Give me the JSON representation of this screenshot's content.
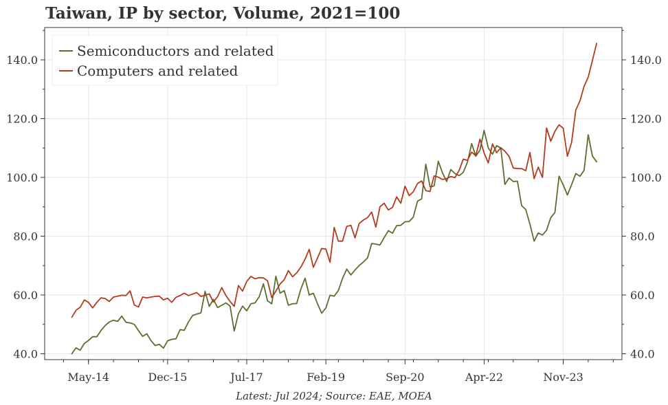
{
  "chart_data": {
    "type": "line",
    "title": "Taiwan, IP by sector, Volume, 2021=100",
    "footnote": "Latest: Jul 2024; Source: EAE, MOEA",
    "xlabel": "",
    "ylabel": "",
    "ylim": [
      38,
      151
    ],
    "y_ticks": [
      40,
      60,
      80,
      100,
      120,
      140
    ],
    "y_tick_labels": [
      "40.0",
      "60.0",
      "80.0",
      "100.0",
      "120.0",
      "140.0"
    ],
    "x_ticks": [
      "May-14",
      "Dec-15",
      "Jul-17",
      "Feb-19",
      "Sep-20",
      "Apr-22",
      "Nov-23"
    ],
    "x_start": "2014-01",
    "x_end": "2024-07",
    "grid": true,
    "legend_position": "top-left",
    "series": [
      {
        "name": "Semiconductors and related",
        "color": "#5a6e2e",
        "values": [
          40.0,
          42.0,
          41.2,
          43.5,
          44.5,
          45.8,
          45.8,
          47.9,
          49.6,
          50.8,
          51.4,
          51.0,
          52.8,
          50.7,
          50.5,
          50.0,
          47.9,
          45.9,
          46.8,
          44.5,
          42.8,
          43.2,
          41.9,
          44.4,
          44.9,
          45.1,
          48.2,
          48.0,
          50.8,
          53.0,
          53.5,
          53.9,
          61.2,
          56.1,
          58.5,
          55.7,
          56.5,
          57.3,
          56.2,
          47.7,
          53.6,
          56.2,
          54.6,
          57.0,
          57.3,
          59.4,
          63.8,
          58.0,
          57.0,
          66.4,
          60.6,
          61.5,
          56.5,
          57.0,
          57.1,
          62.0,
          65.7,
          60.0,
          60.6,
          57.0,
          53.8,
          55.6,
          59.9,
          59.6,
          61.5,
          65.6,
          68.8,
          66.8,
          68.5,
          70.0,
          71.2,
          72.6,
          77.5,
          77.3,
          77.0,
          79.5,
          81.9,
          81.0,
          83.6,
          83.7,
          84.9,
          85.0,
          86.5,
          91.9,
          92.7,
          104.5,
          96.8,
          97.1,
          105.5,
          101.6,
          98.6,
          102.7,
          101.3,
          100.6,
          101.7,
          105.2,
          111.5,
          107.2,
          109.3,
          116.0,
          110.0,
          107.9,
          110.8,
          110.0,
          97.6,
          99.8,
          98.6,
          98.7,
          90.4,
          89.1,
          84.1,
          78.3,
          81.1,
          80.4,
          82.0,
          86.3,
          88.1,
          100.4,
          97.4,
          94.0,
          97.5,
          101.3,
          100.4,
          102.4,
          114.5,
          107.3,
          105.3
        ]
      },
      {
        "name": "Computers and related",
        "color": "#b5391d",
        "values": [
          52.4,
          54.8,
          55.8,
          58.3,
          57.5,
          55.6,
          57.5,
          59.0,
          58.8,
          57.8,
          59.3,
          59.6,
          59.9,
          59.8,
          61.4,
          56.6,
          55.9,
          59.3,
          59.0,
          59.3,
          59.5,
          59.6,
          58.3,
          58.9,
          57.5,
          59.2,
          59.8,
          60.6,
          59.8,
          60.3,
          60.8,
          59.5,
          59.9,
          60.4,
          57.6,
          59.4,
          62.5,
          59.8,
          57.8,
          56.1,
          63.2,
          61.3,
          64.6,
          66.3,
          65.5,
          65.9,
          65.8,
          64.8,
          59.1,
          61.3,
          63.7,
          65.2,
          68.3,
          66.2,
          67.5,
          69.5,
          72.2,
          75.5,
          69.4,
          72.6,
          75.8,
          75.6,
          71.1,
          83.0,
          78.3,
          78.3,
          83.3,
          83.7,
          79.4,
          84.3,
          85.5,
          86.3,
          88.2,
          83.1,
          90.0,
          91.2,
          88.9,
          89.8,
          93.4,
          91.2,
          97.0,
          93.8,
          95.1,
          97.9,
          98.8,
          95.5,
          95.2,
          100.5,
          100.1,
          99.3,
          99.6,
          100.3,
          99.9,
          102.4,
          106.2,
          105.8,
          108.6,
          107.4,
          113.0,
          108.3,
          104.9,
          111.4,
          108.4,
          110.1,
          108.9,
          107.1,
          103.2,
          103.0,
          103.0,
          102.3,
          108.5,
          99.6,
          103.5,
          100.0,
          116.8,
          112.3,
          115.7,
          117.9,
          116.7,
          107.2,
          111.9,
          122.9,
          126.0,
          131.0,
          134.1,
          139.8,
          145.6
        ]
      }
    ]
  }
}
